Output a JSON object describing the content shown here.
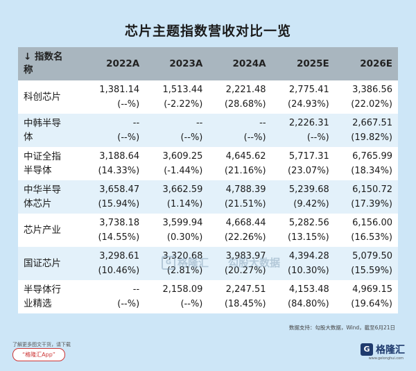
{
  "title": "芯片主题指数营收对比一览",
  "table": {
    "header": {
      "name_line1": "↓ 指数名",
      "name_line2": "称",
      "years": [
        "2022A",
        "2023A",
        "2024A",
        "2025E",
        "2026E"
      ]
    },
    "rows": [
      {
        "name_line1": "科创芯片",
        "name_line2": "",
        "cells": [
          {
            "v": "1,381.14",
            "p": "(--%)"
          },
          {
            "v": "1,513.44",
            "p": "(-2.22%)"
          },
          {
            "v": "2,221.48",
            "p": "(28.68%)"
          },
          {
            "v": "2,775.41",
            "p": "(24.93%)"
          },
          {
            "v": "3,386.56",
            "p": "(22.02%)"
          }
        ]
      },
      {
        "name_line1": "中韩半导",
        "name_line2": "体",
        "cells": [
          {
            "v": "--",
            "p": "(--%)"
          },
          {
            "v": "--",
            "p": "(--%)"
          },
          {
            "v": "--",
            "p": "(--%)"
          },
          {
            "v": "2,226.31",
            "p": "(--%)"
          },
          {
            "v": "2,667.51",
            "p": "(19.82%)"
          }
        ]
      },
      {
        "name_line1": "中证全指",
        "name_line2": "半导体",
        "cells": [
          {
            "v": "3,188.64",
            "p": "(14.33%)"
          },
          {
            "v": "3,609.25",
            "p": "(-1.44%)"
          },
          {
            "v": "4,645.62",
            "p": "(21.16%)"
          },
          {
            "v": "5,717.31",
            "p": "(23.07%)"
          },
          {
            "v": "6,765.99",
            "p": "(18.34%)"
          }
        ]
      },
      {
        "name_line1": "中华半导",
        "name_line2": "体芯片",
        "cells": [
          {
            "v": "3,658.47",
            "p": "(15.94%)"
          },
          {
            "v": "3,662.59",
            "p": "(1.14%)"
          },
          {
            "v": "4,788.39",
            "p": "(21.51%)"
          },
          {
            "v": "5,239.68",
            "p": "(9.42%)"
          },
          {
            "v": "6,150.72",
            "p": "(17.39%)"
          }
        ]
      },
      {
        "name_line1": "芯片产业",
        "name_line2": "",
        "cells": [
          {
            "v": "3,738.18",
            "p": "(14.55%)"
          },
          {
            "v": "3,599.94",
            "p": "(0.30%)"
          },
          {
            "v": "4,668.44",
            "p": "(22.26%)"
          },
          {
            "v": "5,282.56",
            "p": "(13.15%)"
          },
          {
            "v": "6,156.00",
            "p": "(16.53%)"
          }
        ]
      },
      {
        "name_line1": "国证芯片",
        "name_line2": "",
        "cells": [
          {
            "v": "3,298.61",
            "p": "(10.46%)"
          },
          {
            "v": "3,320.68",
            "p": "(2.81%)"
          },
          {
            "v": "3,983.97",
            "p": "(20.27%)"
          },
          {
            "v": "4,394.28",
            "p": "(10.30%)"
          },
          {
            "v": "5,079.50",
            "p": "(15.59%)"
          }
        ]
      },
      {
        "name_line1": "半导体行",
        "name_line2": "业精选",
        "cells": [
          {
            "v": "--",
            "p": "(--%)"
          },
          {
            "v": "2,158.09",
            "p": "(--%)"
          },
          {
            "v": "2,247.51",
            "p": "(18.45%)"
          },
          {
            "v": "4,153.48",
            "p": "(84.80%)"
          },
          {
            "v": "4,969.15",
            "p": "(19.64%)"
          }
        ]
      }
    ]
  },
  "footnote": "数据支持：勾股大数据，Wind，截至6月21日",
  "watermark": {
    "logo_char": "G",
    "logo_text": "格隆汇",
    "text": "勾股大数据"
  },
  "bottom_left": {
    "tip": "了解更多图文干货，请下载",
    "app": "“格隆汇App”"
  },
  "brand": {
    "logo_char": "G",
    "name": "格隆汇",
    "site": "www.gelonghui.com"
  }
}
